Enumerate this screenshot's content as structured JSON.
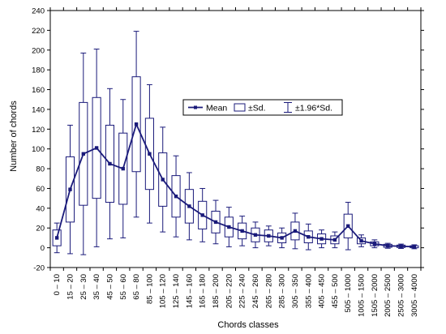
{
  "chart_data": {
    "type": "box",
    "xlabel": "Chords classes",
    "ylabel": "Number of chords",
    "ylim": [
      -20,
      240
    ],
    "yticks": [
      -20,
      0,
      20,
      40,
      60,
      80,
      100,
      120,
      140,
      160,
      180,
      200,
      220,
      240
    ],
    "grid": false,
    "legend_position": "center-right",
    "legend": {
      "mean": "Mean",
      "sd": "±Sd.",
      "sd196": "±1.96*Sd."
    },
    "colors": {
      "series": "#1a1a7a",
      "axis": "#000000"
    },
    "categories": [
      "0 – 10",
      "15 – 20",
      "25 – 30",
      "35 – 40",
      "45 – 50",
      "55 – 60",
      "65 – 80",
      "85 – 100",
      "105 – 120",
      "125 – 140",
      "145 – 160",
      "165 – 180",
      "185 – 200",
      "205 – 220",
      "225 – 240",
      "245 – 260",
      "265 – 280",
      "285 – 300",
      "305 – 350",
      "355 – 400",
      "405 – 450",
      "455 – 500",
      "505 – 1000",
      "1005 – 1500",
      "1505 – 2000",
      "2005 – 2500",
      "2505 – 3000",
      "3005 – 4000"
    ],
    "mean": [
      10,
      59,
      95,
      101,
      85,
      80,
      125,
      95,
      69,
      52,
      42,
      33,
      26,
      21,
      17,
      13,
      12,
      10,
      17,
      11,
      9,
      8,
      22,
      7,
      4,
      2,
      1.5,
      1
    ],
    "sd": [
      8,
      33,
      52,
      51,
      39,
      36,
      48,
      36,
      27,
      21,
      17,
      14,
      11,
      10,
      8,
      7,
      6,
      5,
      9,
      6,
      5,
      4,
      12,
      3,
      2,
      1.5,
      1.2,
      1
    ],
    "sd196": [
      15,
      65,
      102,
      100,
      76,
      70,
      94,
      70,
      53,
      41,
      34,
      27,
      22,
      20,
      15,
      13,
      10,
      10,
      18,
      13,
      9,
      8,
      24,
      6,
      4,
      2.5,
      2.2,
      2
    ]
  }
}
